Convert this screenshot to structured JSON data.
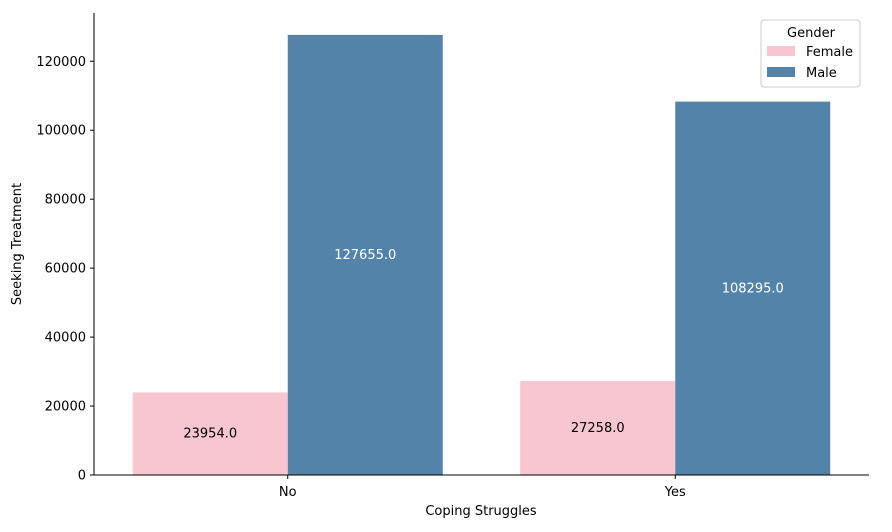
{
  "chart_data": {
    "type": "bar",
    "title": "",
    "xlabel": "Coping Struggles",
    "ylabel": "Seeking Treatment",
    "categories": [
      "No",
      "Yes"
    ],
    "series": [
      {
        "name": "Female",
        "color": "#f7c6d0",
        "values": [
          23954.0,
          27258.0
        ],
        "labels": [
          "23954.0",
          "27258.0"
        ],
        "label_color": "#000000"
      },
      {
        "name": "Male",
        "color": "#5483a9",
        "values": [
          127655.0,
          108295.0
        ],
        "labels": [
          "127655.0",
          "108295.0"
        ],
        "label_color": "#ffffff"
      }
    ],
    "ylim": [
      0,
      134000
    ],
    "yticks": [
      0,
      20000,
      40000,
      60000,
      80000,
      100000,
      120000
    ],
    "ytick_labels": [
      "0",
      "20000",
      "40000",
      "60000",
      "80000",
      "100000",
      "120000"
    ],
    "grid": false,
    "legend": {
      "title": "Gender",
      "placement": "top-right"
    }
  }
}
